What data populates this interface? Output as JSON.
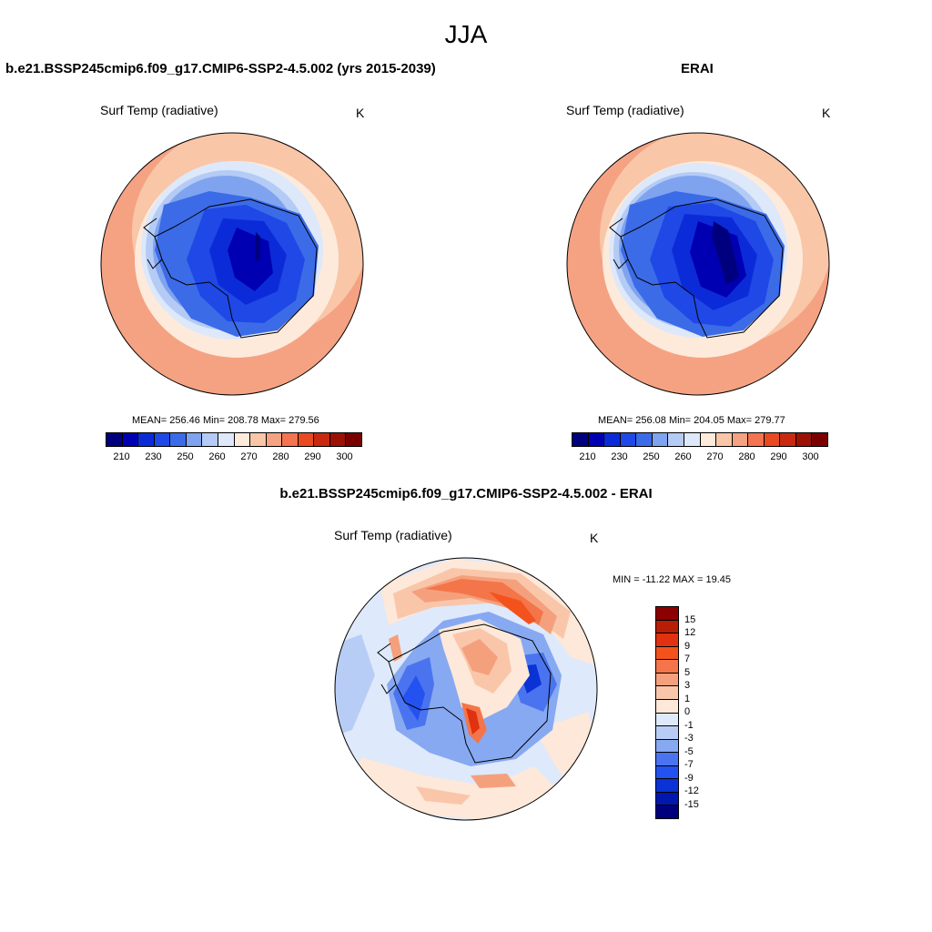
{
  "figure": {
    "title": "JJA",
    "variable_label": "Surf Temp (radiative)",
    "units": "K"
  },
  "panel_model": {
    "title": "b.e21.BSSP245cmip6.f09_g17.CMIP6-SSP2-4.5.002 (yrs 2015-2039)",
    "stats": "MEAN= 256.46  Min= 208.78  Max= 279.56"
  },
  "panel_obs": {
    "title": "ERAI",
    "stats": "MEAN= 256.08  Min= 204.05  Max= 279.77"
  },
  "panel_diff": {
    "title": "b.e21.BSSP245cmip6.f09_g17.CMIP6-SSP2-4.5.002 - ERAI",
    "stats": "MIN = -11.22 MAX =  19.45"
  },
  "colorbar_abs": {
    "colors": [
      "#00007f",
      "#0000b2",
      "#0c2bd8",
      "#1f48e6",
      "#3c6be8",
      "#7fa3ef",
      "#b4cbf5",
      "#dde8fb",
      "#fdeadb",
      "#f9c6a8",
      "#f5a283",
      "#f47350",
      "#ea4a22",
      "#c8290f",
      "#9c1106",
      "#7a0000"
    ],
    "tick_labels": [
      "210",
      "230",
      "250",
      "260",
      "270",
      "280",
      "290",
      "300"
    ]
  },
  "colorbar_diff": {
    "colors": [
      "#00007f",
      "#0018b0",
      "#0a32d4",
      "#2452f0",
      "#4a74ef",
      "#87a9f2",
      "#b8cdf6",
      "#dee9fb",
      "#fde8d9",
      "#fac6aa",
      "#f5a07c",
      "#f47549",
      "#f4521d",
      "#e03210",
      "#b81d06",
      "#8b0000"
    ],
    "tick_labels": [
      "-15",
      "-12",
      "-9",
      "-7",
      "-5",
      "-3",
      "-1",
      "0",
      "1",
      "3",
      "5",
      "7",
      "9",
      "12",
      "15"
    ]
  }
}
